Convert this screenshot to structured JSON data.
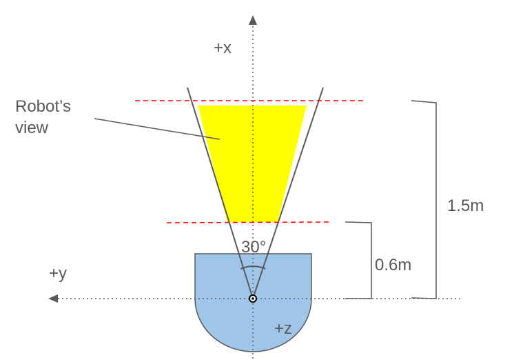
{
  "labels": {
    "x_axis": "+x",
    "y_axis": "+y",
    "z_axis": "+z",
    "view_line1": "Robot’s",
    "view_line2": "view",
    "angle": "30°",
    "near_distance": "0.6m",
    "far_distance": "1.5m"
  },
  "colors": {
    "robot_body": "#9fc5e8",
    "view_area": "#ffff00",
    "boundary_lines": "#ff0000",
    "lines": "#595959",
    "axes": "#595959",
    "text": "#595959"
  }
}
